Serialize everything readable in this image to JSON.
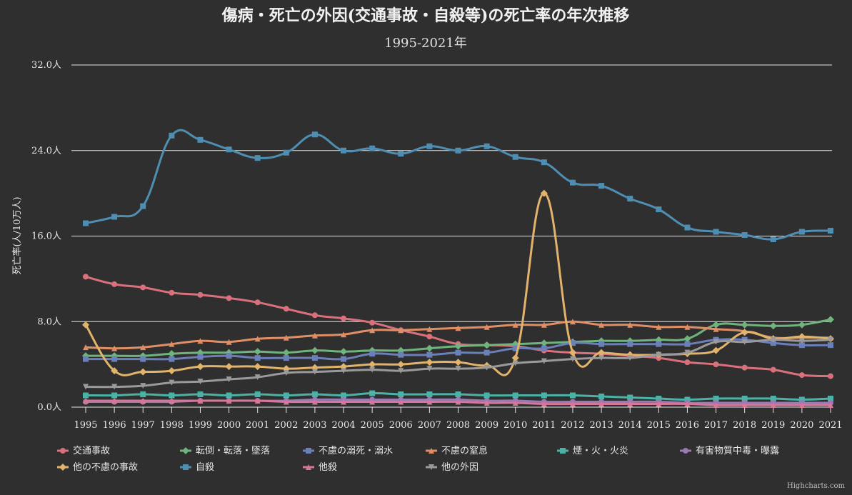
{
  "chart_data": {
    "type": "line",
    "title": "傷病・死亡の外因(交通事故・自殺等)の死亡率の年次推移",
    "subtitle": "1995-2021年",
    "ylabel": "死亡率(人/10万人)",
    "ylim": [
      0,
      32
    ],
    "yticks": [
      "0.0人",
      "8.0人",
      "16.0人",
      "24.0人",
      "32.0人"
    ],
    "ytick_values": [
      0,
      8,
      16,
      24,
      32
    ],
    "x": [
      "1995",
      "1996",
      "1997",
      "1998",
      "1999",
      "2000",
      "2001",
      "2002",
      "2003",
      "2004",
      "2005",
      "2006",
      "2007",
      "2008",
      "2009",
      "2010",
      "2011",
      "2012",
      "2013",
      "2014",
      "2015",
      "2016",
      "2017",
      "2018",
      "2019",
      "2020",
      "2021"
    ],
    "grid": true,
    "legend": "bottom",
    "credits": "Highcharts.com",
    "series": [
      {
        "name": "交通事故",
        "color": "#d9707b",
        "marker": "circle",
        "values": [
          12.2,
          11.5,
          11.2,
          10.7,
          10.5,
          10.2,
          9.8,
          9.2,
          8.6,
          8.3,
          7.9,
          7.2,
          6.6,
          5.9,
          5.8,
          5.7,
          5.3,
          5.1,
          5.0,
          4.8,
          4.6,
          4.2,
          4.0,
          3.7,
          3.5,
          3.0,
          2.9
        ]
      },
      {
        "name": "転倒・転落・墜落",
        "color": "#6fb47c",
        "marker": "diamond",
        "values": [
          4.8,
          4.8,
          4.8,
          5.0,
          5.1,
          5.1,
          5.2,
          5.1,
          5.3,
          5.2,
          5.3,
          5.3,
          5.5,
          5.7,
          5.8,
          5.9,
          6.0,
          6.1,
          6.2,
          6.2,
          6.3,
          6.4,
          7.7,
          7.7,
          7.6,
          7.7,
          8.2
        ]
      },
      {
        "name": "不慮の溺死・溺水",
        "color": "#6b7fb8",
        "marker": "square",
        "values": [
          4.5,
          4.5,
          4.5,
          4.5,
          4.7,
          4.8,
          4.6,
          4.6,
          4.6,
          4.5,
          5.0,
          4.9,
          4.9,
          5.1,
          5.1,
          5.5,
          5.5,
          6.0,
          5.9,
          5.9,
          5.9,
          5.9,
          6.3,
          6.3,
          6.0,
          5.8,
          5.8
        ]
      },
      {
        "name": "不慮の窒息",
        "color": "#e08e66",
        "marker": "triangle",
        "values": [
          5.6,
          5.5,
          5.6,
          5.9,
          6.2,
          6.1,
          6.4,
          6.5,
          6.7,
          6.8,
          7.2,
          7.2,
          7.3,
          7.4,
          7.5,
          7.7,
          7.7,
          8.0,
          7.7,
          7.7,
          7.5,
          7.5,
          7.3,
          7.1,
          6.5,
          6.5,
          6.5
        ]
      },
      {
        "name": "煙・火・火炎",
        "color": "#4ab3a6",
        "marker": "square",
        "values": [
          1.1,
          1.1,
          1.2,
          1.1,
          1.2,
          1.1,
          1.2,
          1.1,
          1.2,
          1.1,
          1.3,
          1.2,
          1.2,
          1.2,
          1.1,
          1.1,
          1.1,
          1.1,
          1.0,
          0.9,
          0.8,
          0.7,
          0.8,
          0.8,
          0.8,
          0.7,
          0.8
        ]
      },
      {
        "name": "有害物質中毒・曝露",
        "color": "#9a79b5",
        "marker": "circle",
        "values": [
          0.5,
          0.5,
          0.5,
          0.5,
          0.6,
          0.6,
          0.6,
          0.6,
          0.7,
          0.7,
          0.7,
          0.7,
          0.7,
          0.7,
          0.6,
          0.6,
          0.5,
          0.5,
          0.5,
          0.5,
          0.5,
          0.4,
          0.4,
          0.4,
          0.4,
          0.4,
          0.4
        ]
      },
      {
        "name": "他の不慮の事故",
        "color": "#e2b36a",
        "marker": "diamond",
        "values": [
          7.7,
          3.4,
          3.3,
          3.4,
          3.8,
          3.8,
          3.8,
          3.6,
          3.7,
          3.8,
          4.0,
          4.0,
          4.2,
          4.2,
          3.9,
          4.6,
          20.0,
          5.1,
          5.1,
          4.9,
          4.9,
          5.0,
          5.3,
          7.0,
          6.4,
          6.6,
          6.4
        ]
      },
      {
        "name": "自殺",
        "color": "#4f8eb3",
        "marker": "square",
        "values": [
          17.2,
          17.8,
          18.8,
          25.4,
          25.0,
          24.1,
          23.3,
          23.8,
          25.5,
          24.0,
          24.2,
          23.7,
          24.4,
          24.0,
          24.4,
          23.4,
          22.9,
          21.0,
          20.7,
          19.5,
          18.5,
          16.8,
          16.4,
          16.1,
          15.7,
          16.4,
          16.5
        ]
      },
      {
        "name": "他殺",
        "color": "#d67799",
        "marker": "triangle",
        "values": [
          0.6,
          0.6,
          0.6,
          0.6,
          0.6,
          0.6,
          0.6,
          0.5,
          0.5,
          0.5,
          0.5,
          0.5,
          0.5,
          0.5,
          0.4,
          0.4,
          0.3,
          0.3,
          0.3,
          0.3,
          0.3,
          0.3,
          0.2,
          0.2,
          0.2,
          0.2,
          0.2
        ]
      },
      {
        "name": "他の外因",
        "color": "#9a9a9a",
        "marker": "triangle-down",
        "values": [
          1.9,
          1.9,
          2.0,
          2.3,
          2.4,
          2.6,
          2.8,
          3.2,
          3.3,
          3.4,
          3.5,
          3.4,
          3.6,
          3.6,
          3.7,
          4.1,
          4.3,
          4.5,
          4.6,
          4.6,
          4.9,
          5.1,
          6.1,
          6.1,
          6.3,
          6.2,
          6.3
        ]
      }
    ]
  }
}
